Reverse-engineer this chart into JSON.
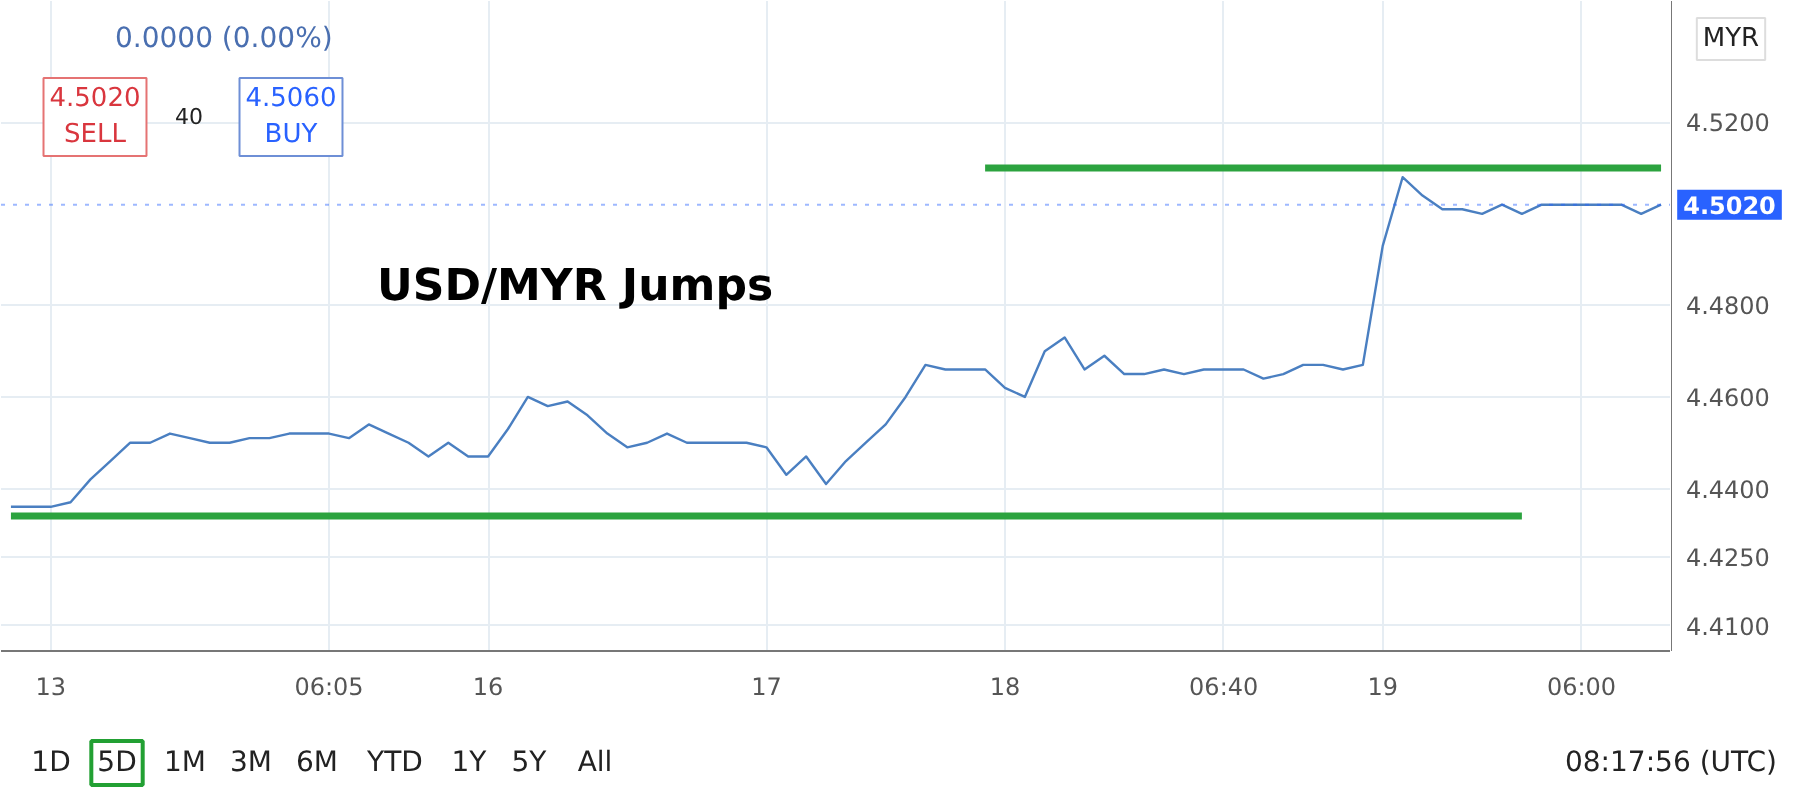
{
  "chart_data": {
    "type": "line",
    "title": "USD/MYR Jumps",
    "categories": [
      null,
      null,
      "13",
      null,
      null,
      null,
      null,
      null,
      null,
      null,
      null,
      null,
      null,
      null,
      null,
      null,
      "06:05",
      null,
      null,
      null,
      null,
      null,
      null,
      null,
      "16",
      null,
      null,
      null,
      null,
      null,
      null,
      null,
      null,
      null,
      null,
      null,
      null,
      null,
      "17",
      null,
      null,
      null,
      null,
      null,
      null,
      null,
      null,
      null,
      null,
      null,
      "18",
      null,
      null,
      null,
      null,
      null,
      null,
      null,
      null,
      null,
      null,
      "06:40",
      null,
      null,
      null,
      null,
      null,
      null,
      null,
      "19",
      null,
      null,
      null,
      null,
      null,
      null,
      null,
      null,
      null,
      "06:00",
      null,
      null,
      null,
      null
    ],
    "series": [
      {
        "color": "#4a7fc1",
        "values": [
          4.436,
          4.436,
          4.436,
          4.437,
          4.442,
          4.446,
          4.45,
          4.45,
          4.452,
          4.451,
          4.45,
          4.45,
          4.451,
          4.451,
          4.452,
          4.452,
          4.452,
          4.451,
          4.454,
          4.452,
          4.45,
          4.447,
          4.45,
          4.447,
          4.447,
          4.453,
          4.46,
          4.458,
          4.459,
          4.456,
          4.452,
          4.449,
          4.45,
          4.452,
          4.45,
          4.45,
          4.45,
          4.45,
          4.449,
          4.443,
          4.447,
          4.441,
          4.446,
          4.45,
          4.454,
          4.46,
          4.467,
          4.466,
          4.466,
          4.466,
          4.462,
          4.46,
          4.47,
          4.473,
          4.466,
          4.469,
          4.465,
          4.465,
          4.466,
          4.465,
          4.466,
          4.466,
          4.466,
          4.464,
          4.465,
          4.467,
          4.467,
          4.466,
          4.467,
          4.493,
          4.508,
          4.504,
          4.501,
          4.501,
          4.5,
          4.502,
          4.5,
          4.502,
          4.502,
          4.502,
          4.502,
          4.502,
          4.5,
          4.502
        ]
      },
      {
        "color": "#2ca33f",
        "values": [
          4.434,
          4.434,
          4.434,
          4.434,
          4.434,
          4.434,
          4.434,
          4.434,
          4.434,
          4.434,
          4.434,
          4.434,
          4.434,
          4.434,
          4.434,
          4.434,
          4.434,
          4.434,
          4.434,
          4.434,
          4.434,
          4.434,
          4.434,
          4.434,
          4.434,
          4.434,
          4.434,
          4.434,
          4.434,
          4.434,
          4.434,
          4.434,
          4.434,
          4.434,
          4.434,
          4.434,
          4.434,
          4.434,
          4.434,
          4.434,
          4.434,
          4.434,
          4.434,
          4.434,
          4.434,
          4.434,
          4.434,
          4.434,
          4.434,
          4.434,
          4.434,
          4.434,
          4.434,
          4.434,
          4.434,
          4.434,
          4.434,
          4.434,
          4.434,
          4.434,
          4.434,
          4.434,
          4.434,
          4.434,
          4.434,
          4.434,
          4.434,
          4.434,
          4.434,
          4.434,
          4.434,
          4.434,
          4.434,
          4.434,
          4.434,
          4.434,
          4.434,
          null,
          null,
          null,
          null,
          null,
          null,
          null
        ]
      },
      {
        "color": "#2ca33f",
        "values": [
          null,
          null,
          null,
          null,
          null,
          null,
          null,
          null,
          null,
          null,
          null,
          null,
          null,
          null,
          null,
          null,
          null,
          null,
          null,
          null,
          null,
          null,
          null,
          null,
          null,
          null,
          null,
          null,
          null,
          null,
          null,
          null,
          null,
          null,
          null,
          null,
          null,
          null,
          null,
          null,
          null,
          null,
          null,
          null,
          null,
          null,
          null,
          null,
          null,
          4.51,
          4.51,
          4.51,
          4.51,
          4.51,
          4.51,
          4.51,
          4.51,
          4.51,
          4.51,
          4.51,
          4.51,
          4.51,
          4.51,
          4.51,
          4.51,
          4.51,
          4.51,
          4.51,
          4.51,
          4.51,
          4.51,
          4.51,
          4.51,
          4.51,
          4.51,
          4.51,
          4.51,
          4.51,
          4.51,
          4.51,
          4.51,
          4.51,
          4.51,
          4.51
        ]
      }
    ],
    "ylim": [
      4.4045,
      4.5465
    ],
    "yticks": [
      {
        "value": 4.41,
        "label": "4.4100"
      },
      {
        "value": 4.425,
        "label": "4.4250"
      },
      {
        "value": 4.44,
        "label": "4.4400"
      },
      {
        "value": 4.46,
        "label": "4.4600"
      },
      {
        "value": 4.48,
        "label": "4.4800"
      },
      {
        "value": 4.52,
        "label": "4.5200"
      }
    ],
    "ref_lines": [
      {
        "axis": "y",
        "value": 4.502,
        "label": "4.5020",
        "color": "#2962ff",
        "line_style": "dotted"
      }
    ],
    "grid": true,
    "annotations": [
      "0.0000 (0.00%)",
      "4.5020\nSELL",
      "40",
      "4.5060\nBUY",
      "MYR",
      "1D",
      "5D",
      "1M",
      "3M",
      "6M",
      "YTD",
      "1Y",
      "5Y",
      "All",
      "08:17:56 (UTC)"
    ]
  }
}
